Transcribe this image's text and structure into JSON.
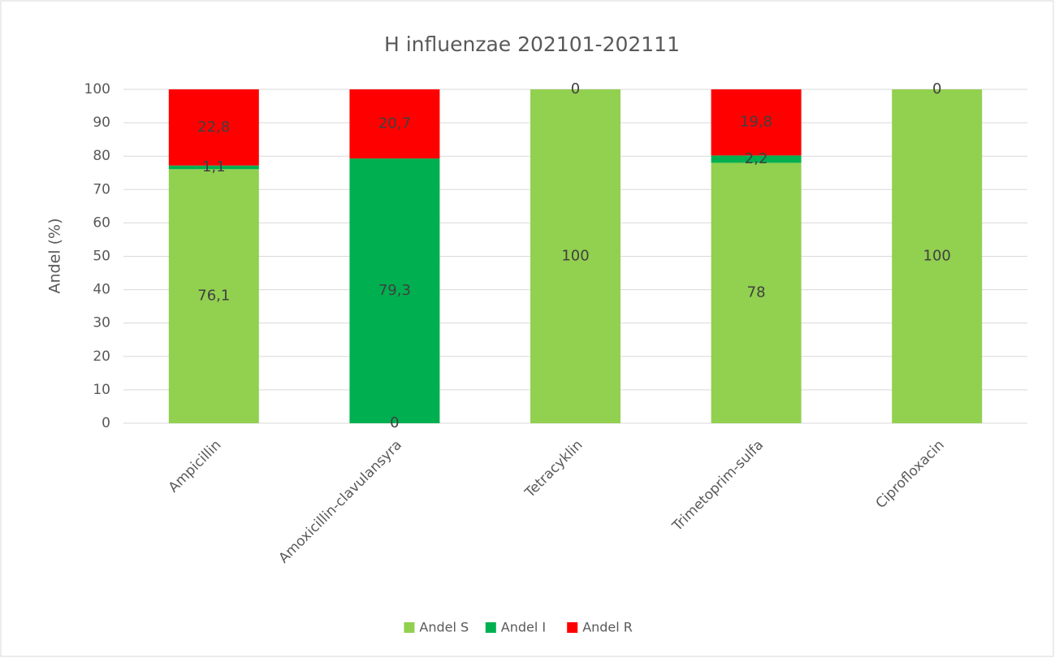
{
  "chart_data": {
    "type": "stacked_bar",
    "title": "H influenzae 202101-202111",
    "y_label": "Andel (%)",
    "categories": [
      "Ampicillin",
      "Amoxicillin-clavulansyra",
      "Tetracyklin",
      "Trimetoprim-sulfa",
      "Ciprofloxacin"
    ],
    "series": [
      {
        "name": "Andel S",
        "color": "#92d050",
        "values": [
          76.1,
          0,
          100,
          78,
          100
        ],
        "value_labels": [
          "76,1",
          "0",
          "100",
          "78",
          "100"
        ]
      },
      {
        "name": "Andel I",
        "color": "#00b050",
        "values": [
          1.1,
          79.3,
          0,
          2.2,
          0
        ],
        "value_labels": [
          "1,1",
          "79,3",
          "0",
          "2,2",
          "0"
        ]
      },
      {
        "name": "Andel R",
        "color": "#ff0000",
        "values": [
          22.8,
          20.7,
          null,
          19.8,
          null
        ],
        "value_labels": [
          "22,8",
          "20,7",
          null,
          "19,8",
          null
        ]
      }
    ],
    "ylim": [
      0,
      100
    ],
    "yticks": [
      0,
      10,
      20,
      30,
      40,
      50,
      60,
      70,
      80,
      90,
      100
    ],
    "grid": true,
    "legend": "bottom"
  }
}
